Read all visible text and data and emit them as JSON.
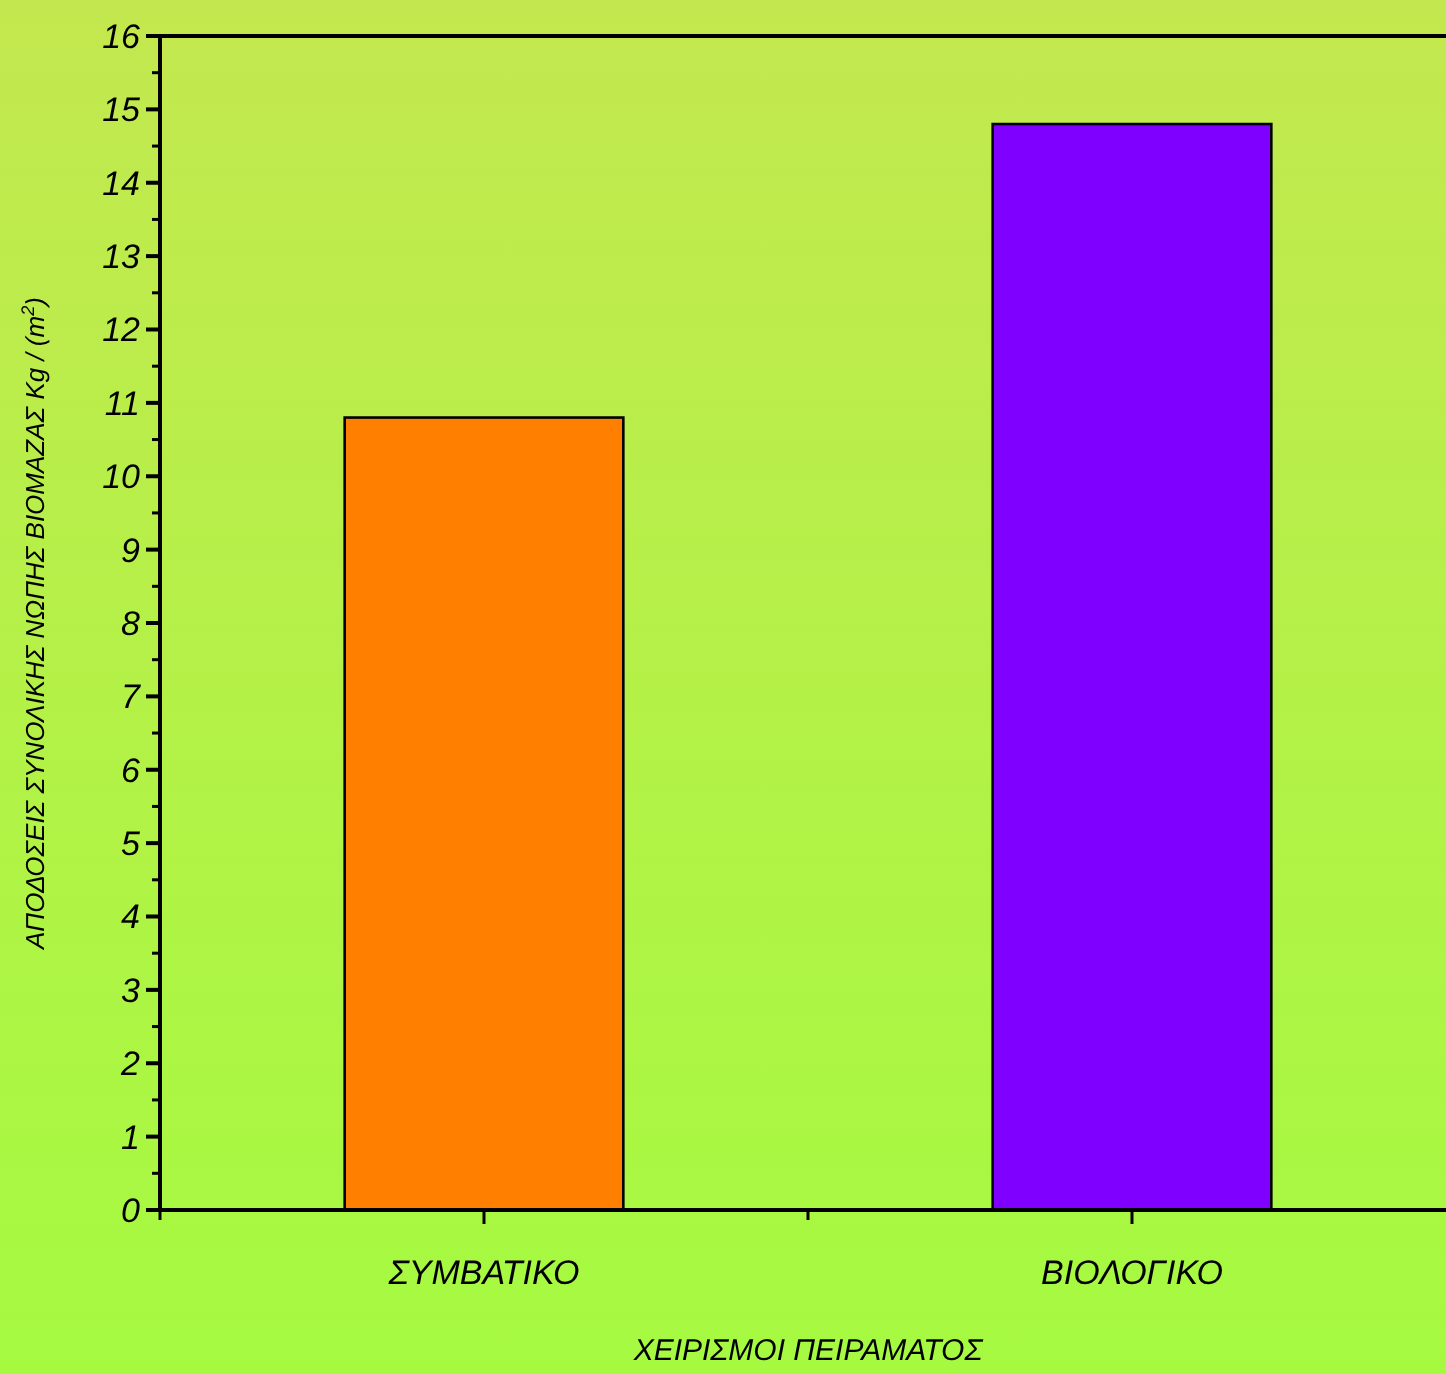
{
  "chart_data": {
    "type": "bar",
    "xlabel": "ΧΕΙΡΙΣΜΟΙ ΠΕΙΡΑΜΑΤΟΣ",
    "ylabel": "ΑΠΟΔΟΣΕΙΣ ΣΥΝΟΛΙΚΗΣ ΝΩΠΗΣ ΒΙΟΜΑΖΑΣ Kg / (m$^{2}$)",
    "categories": [
      "ΣΥΜΒΑΤΙΚΟ",
      "ΒΙΟΛΟΓΙΚΟ"
    ],
    "values": [
      10.8,
      14.8
    ],
    "colors": [
      "#ff8000",
      "#8000ff"
    ],
    "ylim": [
      0,
      16
    ],
    "yticks": [
      0,
      1,
      2,
      3,
      4,
      5,
      6,
      7,
      8,
      9,
      10,
      11,
      12,
      13,
      14,
      15,
      16
    ],
    "grid": false
  }
}
